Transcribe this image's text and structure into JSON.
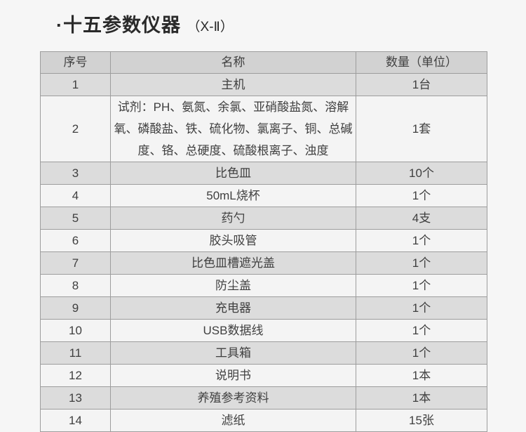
{
  "page": {
    "title": {
      "bullet": "·",
      "main": "十五参数仪器",
      "suffix": "（X-Ⅱ）"
    }
  },
  "table": {
    "headers": [
      "序号",
      "名称",
      "数量（单位）"
    ],
    "rows": [
      {
        "no": "1",
        "name": "主机",
        "qty": "1台"
      },
      {
        "no": "2",
        "name": "试剂：PH、氨氮、余氯、亚硝酸盐氮、溶解氧、磷酸盐、铁、硫化物、氯离子、铜、总碱度、铬、总硬度、硫酸根离子、浊度",
        "qty": "1套"
      },
      {
        "no": "3",
        "name": "比色皿",
        "qty": "10个"
      },
      {
        "no": "4",
        "name": "50mL烧杯",
        "qty": "1个"
      },
      {
        "no": "5",
        "name": "药勺",
        "qty": "4支"
      },
      {
        "no": "6",
        "name": "胶头吸管",
        "qty": "1个"
      },
      {
        "no": "7",
        "name": "比色皿槽遮光盖",
        "qty": "1个"
      },
      {
        "no": "8",
        "name": "防尘盖",
        "qty": "1个"
      },
      {
        "no": "9",
        "name": "充电器",
        "qty": "1个"
      },
      {
        "no": "10",
        "name": "USB数据线",
        "qty": "1个"
      },
      {
        "no": "11",
        "name": "工具箱",
        "qty": "1个"
      },
      {
        "no": "12",
        "name": "说明书",
        "qty": "1本"
      },
      {
        "no": "13",
        "name": "养殖参考资料",
        "qty": "1本"
      },
      {
        "no": "14",
        "name": "滤纸",
        "qty": "15张"
      }
    ]
  },
  "colors": {
    "page_bg": "#f6f6f6",
    "header_bg": "#d2d2d2",
    "odd_row_bg": "#dcdcdc",
    "even_row_bg": "#f4f4f4",
    "border": "#9d9d9d",
    "text": "#3f3f3f",
    "title_text": "#2a2a2a"
  }
}
